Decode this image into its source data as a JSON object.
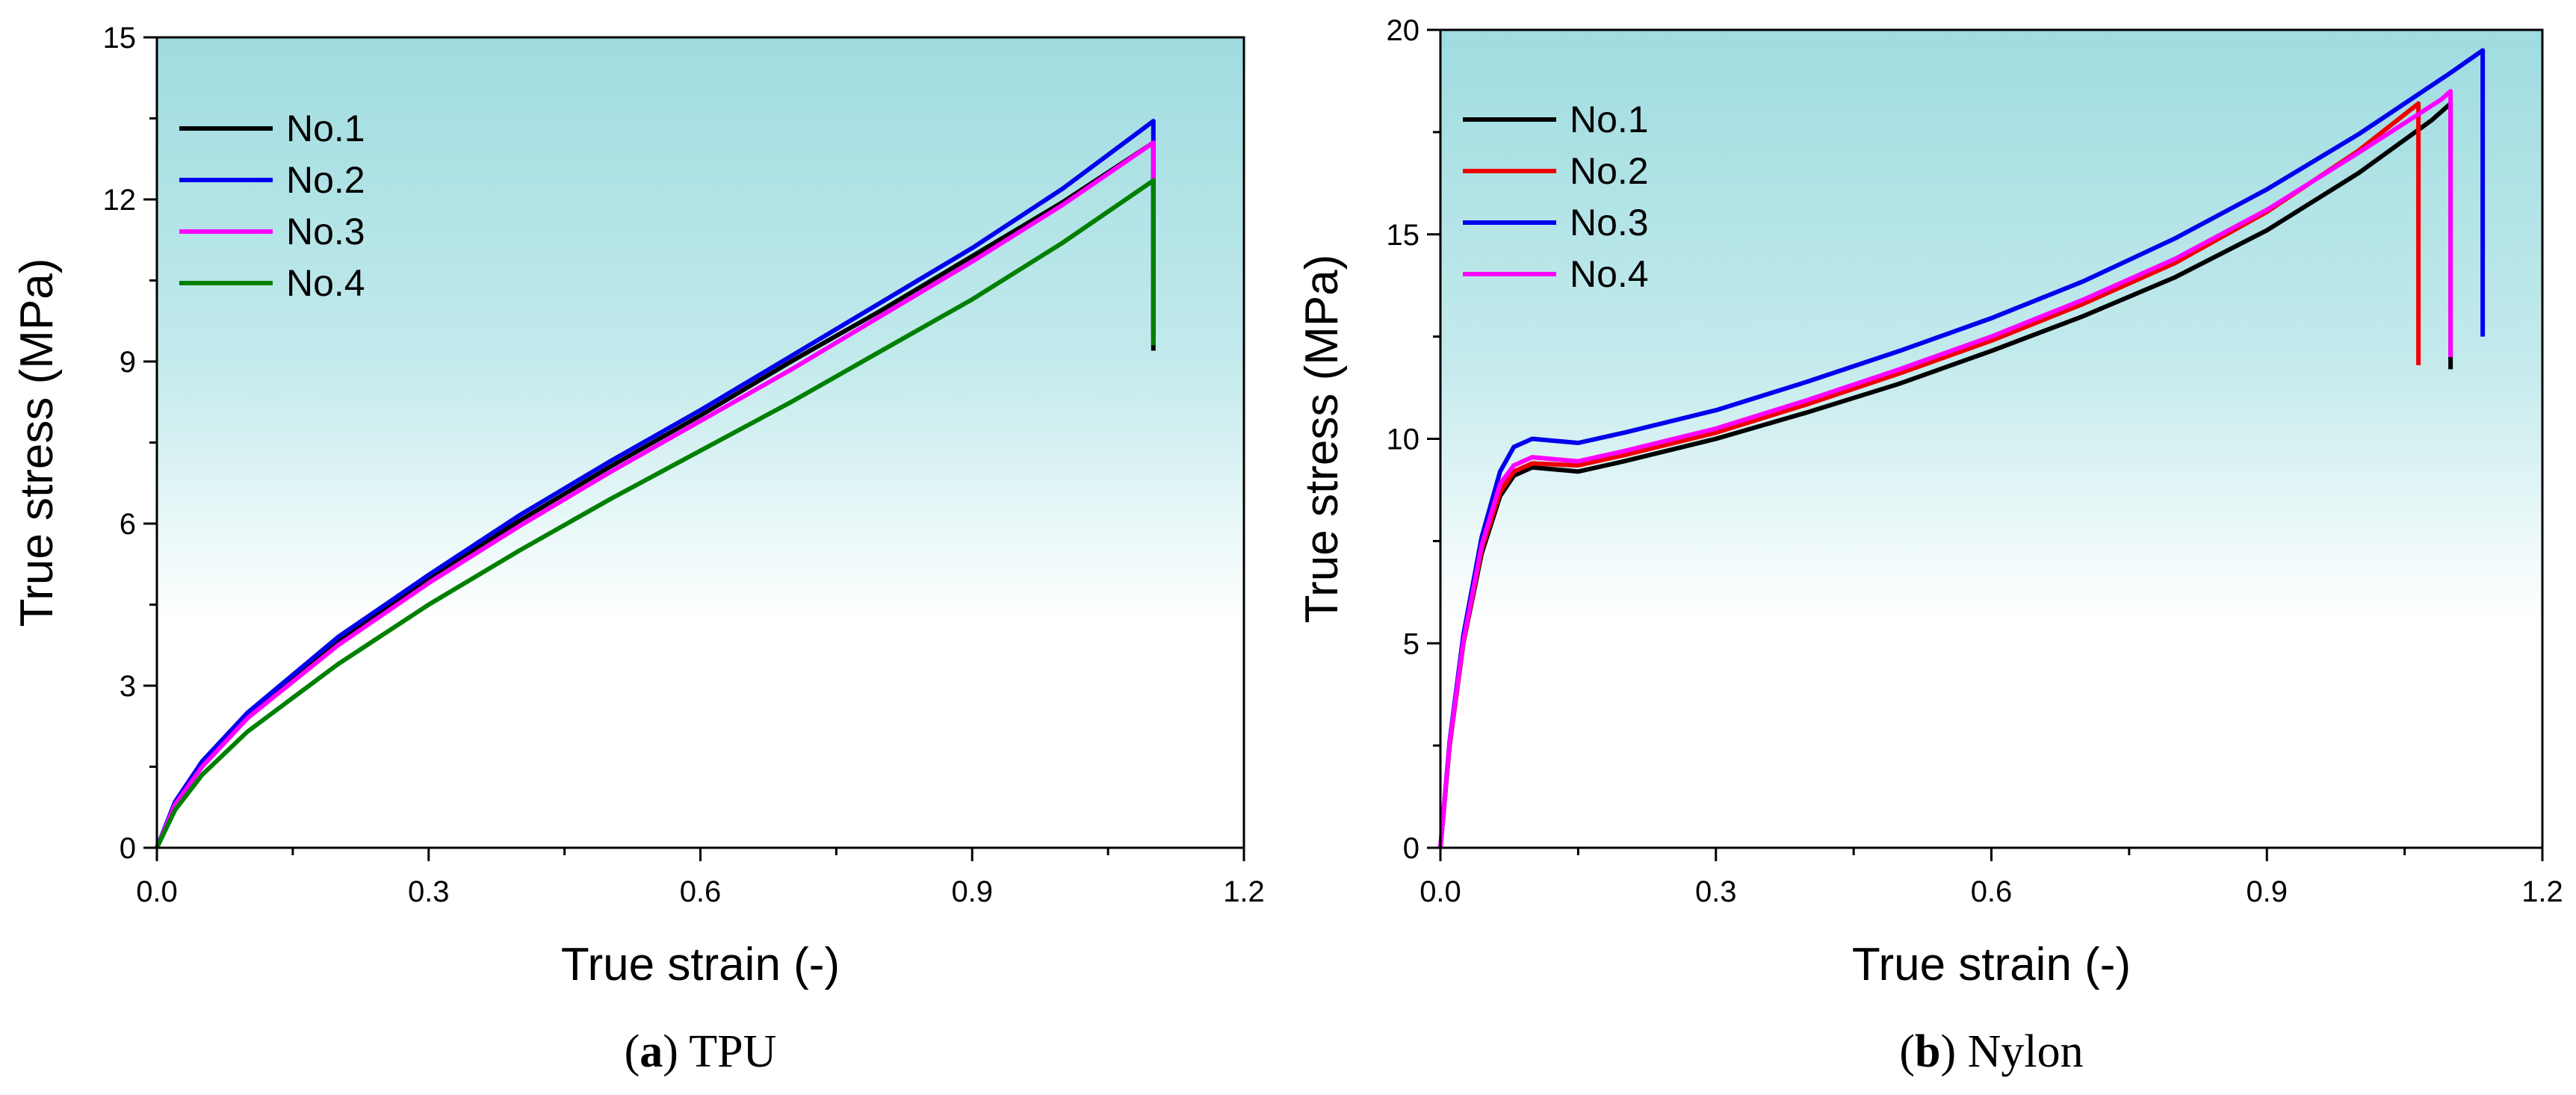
{
  "chart_data": [
    {
      "type": "line",
      "caption_letter": "a",
      "caption_text": "TPU",
      "xlabel": "True strain (-)",
      "ylabel": "True stress (MPa)",
      "xlim": [
        0,
        1.2
      ],
      "ylim": [
        0,
        15
      ],
      "xticks": [
        "0.0",
        "0.3",
        "0.6",
        "0.9",
        "1.2"
      ],
      "yticks": [
        "0",
        "3",
        "6",
        "9",
        "12",
        "15"
      ],
      "xtick_values": [
        0,
        0.3,
        0.6,
        0.9,
        1.2
      ],
      "ytick_values": [
        0,
        3,
        6,
        9,
        12,
        15
      ],
      "legend_position": "top-left",
      "series": [
        {
          "name": "No.1",
          "color": "#000000",
          "x": [
            0,
            0.02,
            0.05,
            0.1,
            0.2,
            0.3,
            0.4,
            0.5,
            0.6,
            0.7,
            0.8,
            0.9,
            1.0,
            1.1,
            1.1
          ],
          "y": [
            0,
            0.8,
            1.55,
            2.45,
            3.8,
            5.0,
            6.05,
            7.05,
            8.0,
            9.0,
            9.95,
            10.95,
            11.95,
            13.05,
            9.2
          ]
        },
        {
          "name": "No.2",
          "color": "#0000ee",
          "x": [
            0,
            0.02,
            0.05,
            0.1,
            0.2,
            0.3,
            0.4,
            0.5,
            0.6,
            0.7,
            0.8,
            0.9,
            1.0,
            1.1,
            1.1
          ],
          "y": [
            0,
            0.85,
            1.6,
            2.5,
            3.9,
            5.05,
            6.15,
            7.15,
            8.1,
            9.1,
            10.1,
            11.1,
            12.2,
            13.45,
            9.5
          ]
        },
        {
          "name": "No.3",
          "color": "#ff00ff",
          "x": [
            0,
            0.02,
            0.05,
            0.1,
            0.2,
            0.3,
            0.4,
            0.5,
            0.6,
            0.7,
            0.8,
            0.9,
            1.0,
            1.1,
            1.1
          ],
          "y": [
            0,
            0.8,
            1.5,
            2.4,
            3.75,
            4.9,
            5.95,
            6.95,
            7.9,
            8.85,
            9.85,
            10.85,
            11.9,
            13.05,
            12.3
          ]
        },
        {
          "name": "No.4",
          "color": "#008000",
          "x": [
            0,
            0.02,
            0.05,
            0.1,
            0.2,
            0.3,
            0.4,
            0.5,
            0.6,
            0.7,
            0.8,
            0.9,
            1.0,
            1.1,
            1.1
          ],
          "y": [
            0,
            0.7,
            1.35,
            2.15,
            3.4,
            4.5,
            5.5,
            6.45,
            7.35,
            8.25,
            9.2,
            10.15,
            11.2,
            12.35,
            9.3
          ]
        }
      ]
    },
    {
      "type": "line",
      "caption_letter": "b",
      "caption_text": "Nylon",
      "xlabel": "True strain (-)",
      "ylabel": "True stress (MPa)",
      "xlim": [
        0,
        1.2
      ],
      "ylim": [
        0,
        20
      ],
      "xticks": [
        "0.0",
        "0.3",
        "0.6",
        "0.9",
        "1.2"
      ],
      "yticks": [
        "0",
        "5",
        "10",
        "15",
        "20"
      ],
      "xtick_values": [
        0,
        0.3,
        0.6,
        0.9,
        1.2
      ],
      "ytick_values": [
        0,
        5,
        10,
        15,
        20
      ],
      "legend_position": "top-left",
      "series": [
        {
          "name": "No.1",
          "color": "#000000",
          "x": [
            0,
            0.01,
            0.025,
            0.045,
            0.065,
            0.08,
            0.1,
            0.15,
            0.2,
            0.3,
            0.4,
            0.5,
            0.6,
            0.7,
            0.8,
            0.9,
            1.0,
            1.08,
            1.1,
            1.1
          ],
          "y": [
            0,
            2.5,
            5.0,
            7.2,
            8.6,
            9.1,
            9.3,
            9.2,
            9.45,
            10.0,
            10.65,
            11.35,
            12.15,
            13.0,
            13.95,
            15.1,
            16.5,
            17.8,
            18.2,
            11.7
          ]
        },
        {
          "name": "No.2",
          "color": "#ee0000",
          "x": [
            0,
            0.01,
            0.025,
            0.045,
            0.065,
            0.08,
            0.1,
            0.15,
            0.2,
            0.3,
            0.4,
            0.5,
            0.6,
            0.7,
            0.8,
            0.9,
            1.0,
            1.065,
            1.065
          ],
          "y": [
            0,
            2.5,
            5.0,
            7.3,
            8.7,
            9.2,
            9.4,
            9.35,
            9.6,
            10.15,
            10.85,
            11.6,
            12.4,
            13.3,
            14.3,
            15.55,
            17.05,
            18.2,
            11.8
          ]
        },
        {
          "name": "No.3",
          "color": "#0000ee",
          "x": [
            0,
            0.01,
            0.025,
            0.045,
            0.065,
            0.08,
            0.1,
            0.15,
            0.2,
            0.3,
            0.4,
            0.5,
            0.6,
            0.7,
            0.8,
            0.9,
            1.0,
            1.1,
            1.135,
            1.135
          ],
          "y": [
            0,
            2.6,
            5.2,
            7.6,
            9.2,
            9.8,
            10.0,
            9.9,
            10.15,
            10.7,
            11.4,
            12.15,
            12.95,
            13.85,
            14.9,
            16.1,
            17.45,
            18.95,
            19.5,
            12.5
          ]
        },
        {
          "name": "No.4",
          "color": "#ff00ff",
          "x": [
            0,
            0.01,
            0.025,
            0.045,
            0.065,
            0.08,
            0.1,
            0.15,
            0.2,
            0.3,
            0.4,
            0.5,
            0.6,
            0.7,
            0.8,
            0.9,
            1.0,
            1.09,
            1.1,
            1.1
          ],
          "y": [
            0,
            2.55,
            5.05,
            7.4,
            8.9,
            9.35,
            9.55,
            9.45,
            9.7,
            10.25,
            10.95,
            11.7,
            12.5,
            13.4,
            14.4,
            15.6,
            17.0,
            18.3,
            18.5,
            12.0
          ]
        }
      ]
    }
  ]
}
